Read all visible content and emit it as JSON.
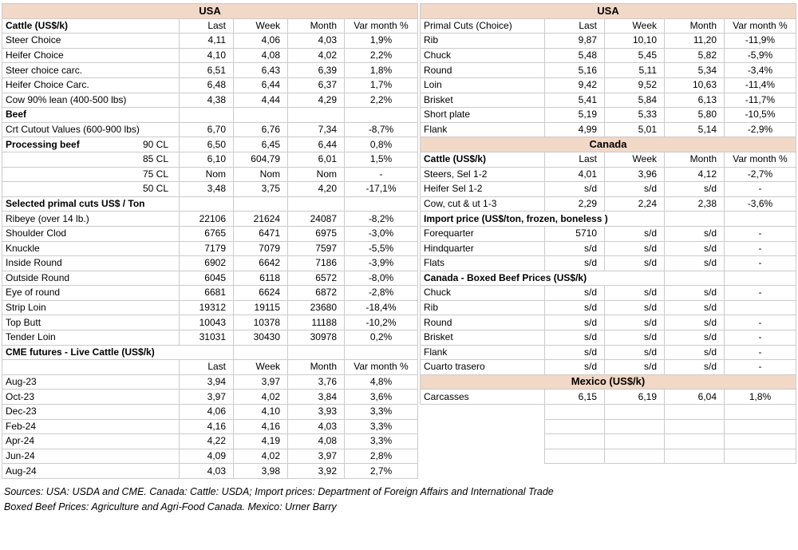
{
  "colors": {
    "band_bg": "#f2d8c6",
    "cell_border": "#cbcbcb",
    "divider": "#000000"
  },
  "left_table": {
    "rows": [
      {
        "type": "band",
        "label": "USA"
      },
      {
        "type": "cols",
        "label": "Cattle (US$/k)",
        "bold": true,
        "headers": [
          "Last",
          "Week",
          "Month",
          "Var month %"
        ]
      },
      {
        "type": "d",
        "label": "Steer Choice",
        "values": [
          "4,11",
          "4,06",
          "4,03",
          "1,9%"
        ]
      },
      {
        "type": "d",
        "label": "Heifer Choice",
        "values": [
          "4,10",
          "4,08",
          "4,02",
          "2,2%"
        ]
      },
      {
        "type": "d",
        "label": "Steer choice carc.",
        "values": [
          "6,51",
          "6,43",
          "6,39",
          "1,8%"
        ]
      },
      {
        "type": "d",
        "label": "Heifer Choice Carc.",
        "values": [
          "6,48",
          "6,44",
          "6,37",
          "1,7%"
        ]
      },
      {
        "type": "d",
        "label": "Cow 90% lean (400-500 lbs)",
        "values": [
          "4,38",
          "4,44",
          "4,29",
          "2,2%"
        ]
      },
      {
        "type": "sec",
        "label": "Beef",
        "span": 1
      },
      {
        "type": "d",
        "label": "Crt Cutout Values (600-900 lbs)",
        "values": [
          "6,70",
          "6,76",
          "7,34",
          "-8,7%"
        ]
      },
      {
        "type": "d",
        "label": "Processing beef",
        "bold": true,
        "label2": "90 CL",
        "values": [
          "6,50",
          "6,45",
          "6,44",
          "0,8%"
        ]
      },
      {
        "type": "d",
        "label": "",
        "label2": "85 CL",
        "values": [
          "6,10",
          "604,79",
          "6,01",
          "1,5%"
        ]
      },
      {
        "type": "d",
        "label": "",
        "label2": "75 CL",
        "values": [
          "Nom",
          "Nom",
          "Nom",
          "-"
        ]
      },
      {
        "type": "d",
        "label": "",
        "label2": "50 CL",
        "values": [
          "3,48",
          "3,75",
          "4,20",
          "-17,1%"
        ]
      },
      {
        "type": "sec",
        "label": "Selected primal cuts US$ / Ton",
        "span": 1
      },
      {
        "type": "d",
        "label": "Ribeye (over 14 lb.)",
        "values": [
          "22106",
          "21624",
          "24087",
          "-8,2%"
        ]
      },
      {
        "type": "d",
        "label": "Shoulder Clod",
        "values": [
          "6765",
          "6471",
          "6975",
          "-3,0%"
        ]
      },
      {
        "type": "d",
        "label": "Knuckle",
        "values": [
          "7179",
          "7079",
          "7597",
          "-5,5%"
        ]
      },
      {
        "type": "d",
        "label": "Inside Round",
        "values": [
          "6902",
          "6642",
          "7186",
          "-3,9%"
        ]
      },
      {
        "type": "d",
        "label": "Outside Round",
        "values": [
          "6045",
          "6118",
          "6572",
          "-8,0%"
        ]
      },
      {
        "type": "d",
        "label": "Eye of round",
        "values": [
          "6681",
          "6624",
          "6872",
          "-2,8%"
        ]
      },
      {
        "type": "d",
        "label": "Strip Loin",
        "values": [
          "19312",
          "19115",
          "23680",
          "-18,4%"
        ]
      },
      {
        "type": "d",
        "label": "Top Butt",
        "values": [
          "10043",
          "10378",
          "11188",
          "-10,2%"
        ]
      },
      {
        "type": "d",
        "label": "Tender Loin",
        "values": [
          "31031",
          "30430",
          "30978",
          "0,2%"
        ]
      },
      {
        "type": "sec",
        "label": "CME futures - Live Cattle (US$/k)",
        "span": 2
      },
      {
        "type": "cols",
        "label": "",
        "headers": [
          "Last",
          "Week",
          "Month",
          "Var month %"
        ]
      },
      {
        "type": "d",
        "label": "Aug-23",
        "values": [
          "3,94",
          "3,97",
          "3,76",
          "4,8%"
        ]
      },
      {
        "type": "d",
        "label": "Oct-23",
        "values": [
          "3,97",
          "4,02",
          "3,84",
          "3,6%"
        ]
      },
      {
        "type": "d",
        "label": "Dec-23",
        "values": [
          "4,06",
          "4,10",
          "3,93",
          "3,3%"
        ]
      },
      {
        "type": "d",
        "label": "Feb-24",
        "values": [
          "4,16",
          "4,16",
          "4,03",
          "3,3%"
        ]
      },
      {
        "type": "d",
        "label": "Apr-24",
        "values": [
          "4,22",
          "4,19",
          "4,08",
          "3,3%"
        ]
      },
      {
        "type": "d",
        "label": "Jun-24",
        "values": [
          "4,09",
          "4,02",
          "3,97",
          "2,8%"
        ]
      },
      {
        "type": "d",
        "label": "Aug-24",
        "values": [
          "4,03",
          "3,98",
          "3,92",
          "2,7%"
        ]
      }
    ]
  },
  "right_table": {
    "rows": [
      {
        "type": "band",
        "label": "USA"
      },
      {
        "type": "cols",
        "label": "Primal Cuts (Choice)",
        "bold": false,
        "headers": [
          "Last",
          "Week",
          "Month",
          "Var month %"
        ]
      },
      {
        "type": "d",
        "label": "Rib",
        "values": [
          "9,87",
          "10,10",
          "11,20",
          "-11,9%"
        ]
      },
      {
        "type": "d",
        "label": "Chuck",
        "values": [
          "5,48",
          "5,45",
          "5,82",
          "-5,9%"
        ]
      },
      {
        "type": "d",
        "label": "Round",
        "values": [
          "5,16",
          "5,11",
          "5,34",
          "-3,4%"
        ]
      },
      {
        "type": "d",
        "label": "Loin",
        "values": [
          "9,42",
          "9,52",
          "10,63",
          "-11,4%"
        ]
      },
      {
        "type": "d",
        "label": "Brisket",
        "values": [
          "5,41",
          "5,84",
          "6,13",
          "-11,7%"
        ]
      },
      {
        "type": "d",
        "label": "Short plate",
        "values": [
          "5,19",
          "5,33",
          "5,80",
          "-10,5%"
        ]
      },
      {
        "type": "d",
        "label": "Flank",
        "values": [
          "4,99",
          "5,01",
          "5,14",
          "-2,9%"
        ]
      },
      {
        "type": "band",
        "label": "Canada"
      },
      {
        "type": "cols",
        "label": "Cattle (US$/k)",
        "bold": true,
        "headers": [
          "Last",
          "Week",
          "Month",
          "Var month %"
        ]
      },
      {
        "type": "d",
        "label": "Steers, Sel 1-2",
        "values": [
          "4,01",
          "3,96",
          "4,12",
          "-2,7%"
        ]
      },
      {
        "type": "d",
        "label": "Heifer Sel 1-2",
        "values": [
          "s/d",
          "s/d",
          "s/d",
          "-"
        ]
      },
      {
        "type": "d",
        "label": "Cow, cut & ut 1-3",
        "values": [
          "2,29",
          "2,24",
          "2,38",
          "-3,6%"
        ]
      },
      {
        "type": "sec",
        "label": "Import price (US$/ton, frozen, boneless )",
        "span": 3
      },
      {
        "type": "d",
        "label": "Forequarter",
        "values": [
          "5710",
          "s/d",
          "s/d",
          "-"
        ]
      },
      {
        "type": "d",
        "label": "Hindquarter",
        "values": [
          "s/d",
          "s/d",
          "s/d",
          "-"
        ]
      },
      {
        "type": "d",
        "label": "Flats",
        "values": [
          "s/d",
          "s/d",
          "s/d",
          "-"
        ]
      },
      {
        "type": "sec",
        "label": "Canada - Boxed Beef Prices (US$/k)",
        "span": 3
      },
      {
        "type": "d",
        "label": "Chuck",
        "values": [
          "s/d",
          "s/d",
          "s/d",
          "-"
        ]
      },
      {
        "type": "d",
        "label": "Rib",
        "values": [
          "s/d",
          "s/d",
          "s/d",
          ""
        ]
      },
      {
        "type": "d",
        "label": "Round",
        "values": [
          "s/d",
          "s/d",
          "s/d",
          "-"
        ]
      },
      {
        "type": "d",
        "label": "Brisket",
        "values": [
          "s/d",
          "s/d",
          "s/d",
          "-"
        ]
      },
      {
        "type": "d",
        "label": "Flank",
        "values": [
          "s/d",
          "s/d",
          "s/d",
          "-"
        ]
      },
      {
        "type": "d",
        "label": "Cuarto trasero",
        "values": [
          "s/d",
          "s/d",
          "s/d",
          "-"
        ]
      },
      {
        "type": "band",
        "label": "Mexico (US$/k)"
      },
      {
        "type": "d",
        "label": "Carcasses",
        "values": [
          "6,15",
          "6,19",
          "6,04",
          "1,8%"
        ]
      },
      {
        "type": "empty"
      },
      {
        "type": "empty"
      },
      {
        "type": "empty"
      },
      {
        "type": "empty"
      }
    ]
  },
  "footer": {
    "line1": "Sources: USA: USDA and CME. Canada: Cattle: USDA; Import prices: Department of Foreign Affairs and International Trade",
    "line2": "Boxed Beef Prices: Agriculture and Agri-Food Canada. Mexico: Urner Barry"
  }
}
